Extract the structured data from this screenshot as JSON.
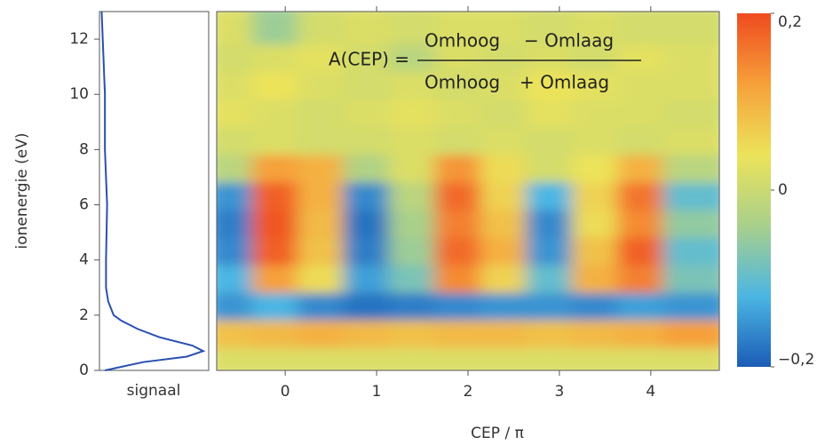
{
  "chart_data": [
    {
      "type": "line",
      "ylabel": "ionenergie (eV)",
      "xlabel": "signaal",
      "ylim": [
        0,
        13
      ],
      "yticks": [
        0,
        2,
        4,
        6,
        8,
        10,
        12
      ],
      "xlim": [
        0,
        1
      ],
      "color": "#2a4fb0",
      "y": [
        0,
        0.3,
        0.5,
        0.7,
        0.9,
        1.2,
        1.5,
        1.8,
        2.0,
        2.5,
        3,
        4,
        6,
        8,
        10,
        12,
        13
      ],
      "values": [
        0.05,
        0.4,
        0.8,
        0.95,
        0.85,
        0.55,
        0.35,
        0.2,
        0.13,
        0.08,
        0.06,
        0.06,
        0.07,
        0.05,
        0.05,
        0.03,
        0.02
      ]
    },
    {
      "type": "heatmap",
      "xlabel": "CEP / π",
      "xlim": [
        -0.75,
        4.75
      ],
      "xticks": [
        0,
        1,
        2,
        3,
        4
      ],
      "ylim": [
        0,
        13
      ],
      "x": [
        -0.5,
        0,
        0.5,
        1,
        1.5,
        2,
        2.5,
        3,
        3.5,
        4,
        4.5
      ],
      "y": [
        0.5,
        1.5,
        2.5,
        3.5,
        4.5,
        5.5,
        6.5,
        7.5,
        8.5,
        9.5,
        10.5,
        11.5,
        12.5
      ],
      "z": [
        [
          0.02,
          0.02,
          0.02,
          0.02,
          0.02,
          0.02,
          0.02,
          0.02,
          0.02,
          0.02,
          0.02
        ],
        [
          0.08,
          0.09,
          0.1,
          0.09,
          0.08,
          0.09,
          0.09,
          0.08,
          0.09,
          0.1,
          0.12
        ],
        [
          -0.15,
          -0.12,
          -0.16,
          -0.18,
          -0.17,
          -0.16,
          -0.15,
          -0.15,
          -0.16,
          -0.14,
          -0.15
        ],
        [
          -0.12,
          0.12,
          0.05,
          -0.14,
          -0.08,
          0.14,
          0.06,
          -0.1,
          0.1,
          0.15,
          -0.08
        ],
        [
          -0.16,
          0.18,
          0.08,
          -0.17,
          -0.05,
          0.17,
          0.1,
          -0.15,
          0.08,
          0.18,
          -0.1
        ],
        [
          -0.17,
          0.19,
          0.09,
          -0.18,
          -0.04,
          0.15,
          0.08,
          -0.16,
          0.05,
          0.14,
          -0.06
        ],
        [
          -0.15,
          0.18,
          0.1,
          -0.16,
          -0.02,
          0.17,
          0.06,
          -0.12,
          0.06,
          0.16,
          -0.1
        ],
        [
          -0.02,
          0.12,
          0.1,
          -0.03,
          0.02,
          0.13,
          0.05,
          0.01,
          0.04,
          0.1,
          -0.02
        ],
        [
          0.01,
          0.02,
          0.01,
          0.01,
          0.02,
          0.01,
          0.02,
          0.01,
          0.02,
          0.01,
          0.02
        ],
        [
          0.03,
          0.02,
          0.01,
          0.02,
          0.03,
          0.02,
          0.01,
          0.03,
          0.02,
          0.02,
          0.01
        ],
        [
          0.02,
          0.04,
          0.02,
          0.01,
          0.02,
          0.01,
          0.02,
          0.04,
          0.03,
          0.02,
          0.02
        ],
        [
          0.01,
          0.02,
          0.03,
          0.01,
          -0.02,
          0.02,
          0.01,
          0.02,
          0.01,
          0.03,
          0.02
        ],
        [
          0.02,
          -0.05,
          0.01,
          0.02,
          0.01,
          0.02,
          0.02,
          0.01,
          0.02,
          0.01,
          0.01
        ]
      ],
      "zlim": [
        -0.2,
        0.2
      ],
      "zticks": [
        {
          "value": 0.2,
          "label": "0,2"
        },
        0,
        {
          "value": -0.2,
          "label": "−0,2"
        }
      ],
      "colorscale": [
        "#1b5cb6",
        "#4cb6e3",
        "#a9d08b",
        "#ece35a",
        "#f6a03a",
        "#ef4b1f"
      ],
      "annotation": {
        "lhs": "A(CEP) =",
        "numerator": [
          "Omhoog",
          "− Omlaag"
        ],
        "denominator": [
          "Omhoog",
          "+ Omlaag"
        ]
      }
    }
  ]
}
